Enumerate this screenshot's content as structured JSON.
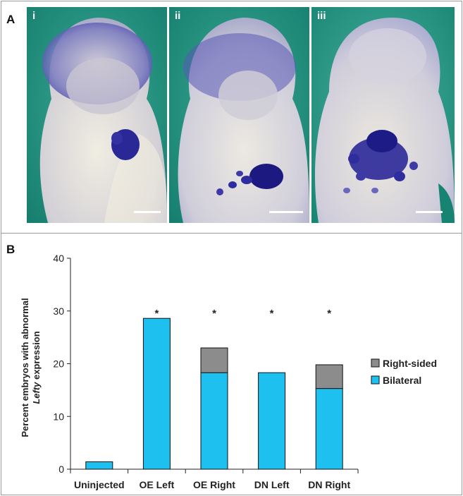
{
  "panel_a": {
    "letter": "A",
    "photos": [
      {
        "numeral": "i"
      },
      {
        "numeral": "ii"
      },
      {
        "numeral": "iii"
      }
    ],
    "colors": {
      "background": "#1f9b87",
      "stain": "#2a2898",
      "tissue": "#dcd9cf"
    }
  },
  "panel_b": {
    "letter": "B"
  },
  "chart_data": {
    "type": "bar",
    "stacked": true,
    "categories": [
      "Uninjected",
      "OE Left",
      "OE Right",
      "DN Left",
      "DN Right"
    ],
    "series": [
      {
        "name": "Bilateral",
        "color": "#1ec0f0",
        "values": [
          1.4,
          28.6,
          18.3,
          18.3,
          15.3
        ]
      },
      {
        "name": "Right-sided",
        "color": "#8c8c8c",
        "values": [
          0,
          0,
          4.7,
          0,
          4.5
        ]
      }
    ],
    "ylabel_line1": "Percent embryos with abnormal",
    "ylabel_italic": "Lefty",
    "ylabel_rest": " expression",
    "ylim": [
      0,
      40
    ],
    "yticks": [
      "0",
      "10",
      "20",
      "30",
      "40"
    ],
    "significance": [
      "",
      "*",
      "*",
      "*",
      "*"
    ],
    "legend_position": "right",
    "grid": false
  }
}
